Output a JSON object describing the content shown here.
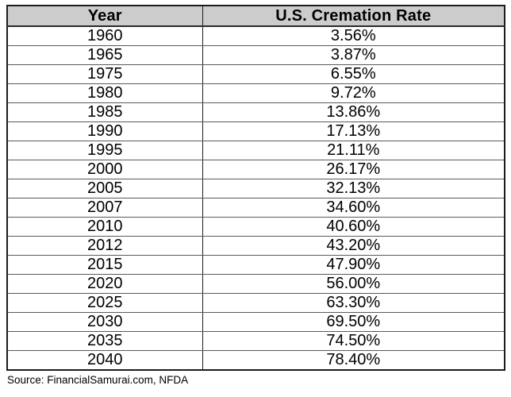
{
  "table": {
    "columns": [
      "Year",
      "U.S. Cremation Rate"
    ],
    "rows": [
      [
        "1960",
        "3.56%"
      ],
      [
        "1965",
        "3.87%"
      ],
      [
        "1975",
        "6.55%"
      ],
      [
        "1980",
        "9.72%"
      ],
      [
        "1985",
        "13.86%"
      ],
      [
        "1990",
        "17.13%"
      ],
      [
        "1995",
        "21.11%"
      ],
      [
        "2000",
        "26.17%"
      ],
      [
        "2005",
        "32.13%"
      ],
      [
        "2007",
        "34.60%"
      ],
      [
        "2010",
        "40.60%"
      ],
      [
        "2012",
        "43.20%"
      ],
      [
        "2015",
        "47.90%"
      ],
      [
        "2020",
        "56.00%"
      ],
      [
        "2025",
        "63.30%"
      ],
      [
        "2030",
        "69.50%"
      ],
      [
        "2035",
        "74.50%"
      ],
      [
        "2040",
        "78.40%"
      ]
    ]
  },
  "source": "Source: FinancialSamurai.com, NFDA",
  "colors": {
    "header_bg": "#cccccc",
    "outer_border": "#1c1c1c",
    "row_border": "#5a5a5a",
    "text": "#000000"
  },
  "chart_data": {
    "type": "table",
    "columns": [
      "Year",
      "U.S. Cremation Rate"
    ],
    "categories": [
      "1960",
      "1965",
      "1975",
      "1980",
      "1985",
      "1990",
      "1995",
      "2000",
      "2005",
      "2007",
      "2010",
      "2012",
      "2015",
      "2020",
      "2025",
      "2030",
      "2035",
      "2040"
    ],
    "values": [
      3.56,
      3.87,
      6.55,
      9.72,
      13.86,
      17.13,
      21.11,
      26.17,
      32.13,
      34.6,
      40.6,
      43.2,
      47.9,
      56.0,
      63.3,
      69.5,
      74.5,
      78.4
    ],
    "value_unit": "%",
    "source": "Source: FinancialSamurai.com, NFDA"
  }
}
